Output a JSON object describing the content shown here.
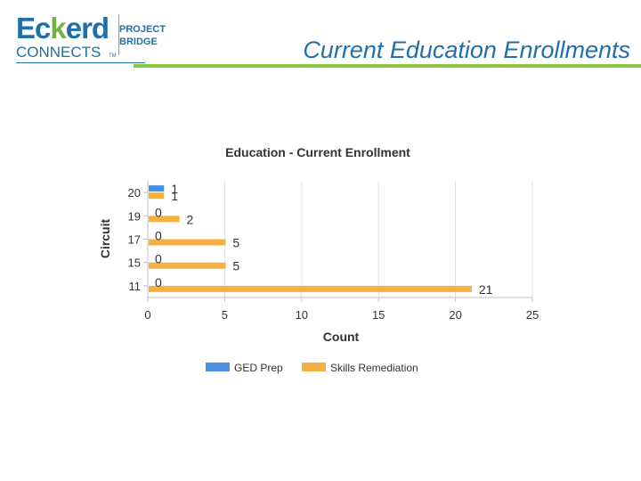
{
  "header": {
    "logo": {
      "brand_prefix": "Ec",
      "brand_accent": "k",
      "brand_suffix": "erd",
      "connects": "CONNECTS",
      "tm": "TM",
      "project": "PROJECT",
      "bridge": "BRIDGE"
    },
    "title": "Current Education Enrollments"
  },
  "colors": {
    "brand_blue": "#1f6fa8",
    "brand_green": "#8cc63f",
    "ged_prep": "#4a90e2",
    "skills_remediation": "#f5b041"
  },
  "chart_data": {
    "type": "bar",
    "orientation": "horizontal",
    "title": "Education - Current Enrollment",
    "xlabel": "Count",
    "ylabel": "Circuit",
    "categories": [
      "20",
      "19",
      "17",
      "15",
      "11"
    ],
    "series": [
      {
        "name": "GED Prep",
        "color": "#4a90e2",
        "values": [
          1,
          0,
          0,
          0,
          0
        ]
      },
      {
        "name": "Skills Remediation",
        "color": "#f5b041",
        "values": [
          1,
          2,
          5,
          5,
          21
        ]
      }
    ],
    "xlim": [
      0,
      25
    ],
    "xticks": [
      "0",
      "5",
      "10",
      "15",
      "20",
      "25"
    ],
    "grid": true,
    "legend_position": "bottom"
  }
}
